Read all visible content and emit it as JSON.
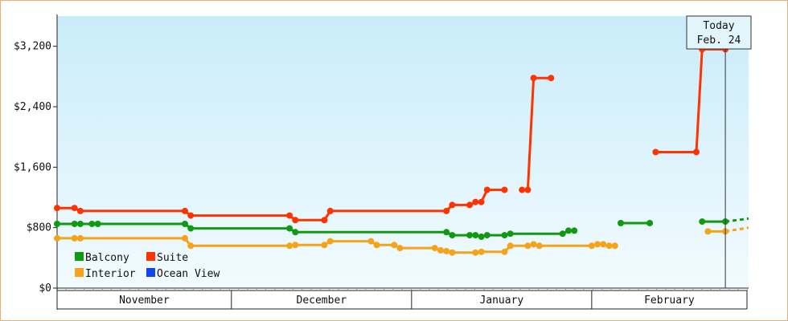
{
  "chart_data": {
    "type": "line",
    "title": "",
    "xlabel": "",
    "ylabel": "",
    "ylim": [
      0,
      3600
    ],
    "xlim": [
      "2024-11-01",
      "2025-02-28"
    ],
    "yticks": [
      0,
      800,
      1600,
      2400,
      3200
    ],
    "ytick_labels": [
      "$0",
      "$800",
      "$1,600",
      "$2,400",
      "$3,200"
    ],
    "month_labels": [
      "November",
      "December",
      "January",
      "February"
    ],
    "today": {
      "label_line1": "Today",
      "label_line2": "Feb. 24",
      "date": "2025-02-24"
    },
    "legend_position": "bottom-left",
    "grid": false,
    "series": [
      {
        "name": "Balcony",
        "color": "#119911",
        "segments": [
          [
            [
              "2024-11-01",
              850
            ],
            [
              "2024-11-04",
              850
            ],
            [
              "2024-11-05",
              850
            ],
            [
              "2024-11-07",
              850
            ],
            [
              "2024-11-08",
              850
            ],
            [
              "2024-11-23",
              850
            ],
            [
              "2024-11-24",
              790
            ],
            [
              "2024-12-11",
              790
            ],
            [
              "2024-12-12",
              740
            ],
            [
              "2025-01-07",
              740
            ],
            [
              "2025-01-08",
              700
            ],
            [
              "2025-01-11",
              700
            ],
            [
              "2025-01-12",
              700
            ],
            [
              "2025-01-13",
              680
            ],
            [
              "2025-01-14",
              700
            ],
            [
              "2025-01-17",
              700
            ],
            [
              "2025-01-18",
              720
            ],
            [
              "2025-01-27",
              720
            ],
            [
              "2025-01-28",
              760
            ],
            [
              "2025-01-29",
              760
            ]
          ],
          [
            [
              "2025-02-06",
              860
            ],
            [
              "2025-02-11",
              860
            ]
          ],
          [
            [
              "2025-02-20",
              880
            ],
            [
              "2025-02-24",
              880
            ]
          ]
        ],
        "projection": [
          [
            "2025-02-24",
            880
          ],
          [
            "2025-02-28",
            920
          ]
        ]
      },
      {
        "name": "Suite",
        "color": "#ff3300",
        "segments": [
          [
            [
              "2024-11-01",
              1060
            ],
            [
              "2024-11-04",
              1060
            ],
            [
              "2024-11-05",
              1020
            ],
            [
              "2024-11-23",
              1020
            ],
            [
              "2024-11-24",
              960
            ],
            [
              "2024-12-11",
              960
            ],
            [
              "2024-12-12",
              900
            ],
            [
              "2024-12-17",
              900
            ],
            [
              "2024-12-18",
              1020
            ],
            [
              "2025-01-07",
              1020
            ],
            [
              "2025-01-08",
              1100
            ],
            [
              "2025-01-11",
              1100
            ],
            [
              "2025-01-12",
              1140
            ],
            [
              "2025-01-13",
              1140
            ],
            [
              "2025-01-14",
              1300
            ],
            [
              "2025-01-17",
              1300
            ]
          ],
          [
            [
              "2025-01-20",
              1300
            ],
            [
              "2025-01-21",
              1300
            ],
            [
              "2025-01-22",
              2780
            ],
            [
              "2025-01-25",
              2780
            ]
          ],
          [
            [
              "2025-02-12",
              1800
            ],
            [
              "2025-02-19",
              1800
            ],
            [
              "2025-02-20",
              3160
            ],
            [
              "2025-02-24",
              3160
            ]
          ]
        ],
        "projection": [
          [
            "2025-02-24",
            3160
          ],
          [
            "2025-02-28",
            3340
          ]
        ]
      },
      {
        "name": "Interior",
        "color": "#f5a318",
        "segments": [
          [
            [
              "2024-11-01",
              660
            ],
            [
              "2024-11-04",
              660
            ],
            [
              "2024-11-05",
              660
            ],
            [
              "2024-11-23",
              660
            ],
            [
              "2024-11-24",
              560
            ],
            [
              "2024-12-11",
              560
            ],
            [
              "2024-12-12",
              570
            ],
            [
              "2024-12-17",
              570
            ],
            [
              "2024-12-18",
              620
            ],
            [
              "2024-12-25",
              620
            ],
            [
              "2024-12-26",
              570
            ],
            [
              "2024-12-29",
              570
            ],
            [
              "2024-12-30",
              530
            ],
            [
              "2025-01-05",
              530
            ],
            [
              "2025-01-06",
              500
            ],
            [
              "2025-01-07",
              490
            ],
            [
              "2025-01-08",
              470
            ],
            [
              "2025-01-12",
              470
            ],
            [
              "2025-01-13",
              480
            ],
            [
              "2025-01-17",
              480
            ],
            [
              "2025-01-18",
              560
            ],
            [
              "2025-01-21",
              560
            ],
            [
              "2025-01-22",
              580
            ],
            [
              "2025-01-23",
              560
            ],
            [
              "2025-02-01",
              560
            ],
            [
              "2025-02-02",
              580
            ],
            [
              "2025-02-03",
              580
            ],
            [
              "2025-02-04",
              560
            ],
            [
              "2025-02-05",
              560
            ]
          ],
          [
            [
              "2025-02-21",
              750
            ],
            [
              "2025-02-24",
              750
            ]
          ]
        ],
        "projection": [
          [
            "2025-02-24",
            750
          ],
          [
            "2025-02-28",
            800
          ]
        ]
      },
      {
        "name": "Ocean View",
        "color": "#1144ee",
        "segments": [],
        "projection": []
      }
    ]
  }
}
